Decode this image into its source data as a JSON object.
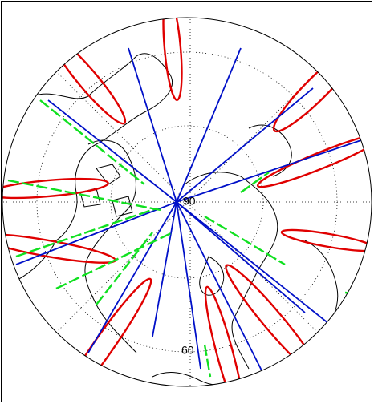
{
  "map": {
    "latitude_labels": [
      90,
      60
    ]
  }
}
